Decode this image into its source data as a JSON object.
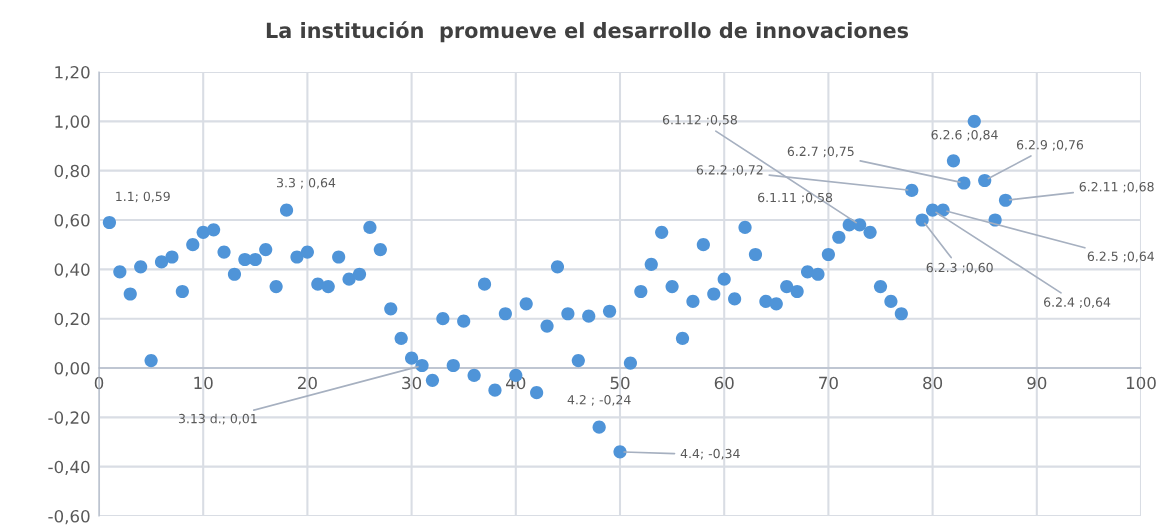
{
  "chart_data": {
    "type": "scatter",
    "title": "La institución  promueve el desarrollo de innovaciones",
    "x": [
      1,
      2,
      3,
      4,
      5,
      6,
      7,
      8,
      9,
      10,
      11,
      12,
      13,
      14,
      15,
      16,
      17,
      18,
      19,
      20,
      21,
      22,
      23,
      24,
      25,
      26,
      27,
      28,
      29,
      30,
      31,
      32,
      33,
      34,
      35,
      36,
      37,
      38,
      39,
      40,
      41,
      42,
      43,
      44,
      45,
      46,
      47,
      48,
      49,
      50,
      51,
      52,
      53,
      54,
      55,
      56,
      57,
      58,
      59,
      60,
      61,
      62,
      63,
      64,
      65,
      66,
      67,
      68,
      69,
      70,
      71,
      72,
      73,
      74,
      75,
      76,
      77,
      78,
      79,
      80,
      81,
      82,
      83,
      84,
      85,
      86,
      87
    ],
    "series": [
      {
        "color": "#4f94d8",
        "values": [
          0.59,
          0.39,
          0.3,
          0.41,
          0.03,
          0.43,
          0.45,
          0.31,
          0.5,
          0.55,
          0.56,
          0.47,
          0.38,
          0.44,
          0.44,
          0.48,
          0.33,
          0.64,
          0.45,
          0.47,
          0.34,
          0.33,
          0.45,
          0.36,
          0.38,
          0.57,
          0.48,
          0.24,
          0.12,
          0.04,
          0.01,
          -0.05,
          0.2,
          0.01,
          0.19,
          -0.03,
          0.34,
          -0.09,
          0.22,
          -0.03,
          0.26,
          -0.1,
          0.17,
          0.41,
          0.22,
          0.03,
          0.21,
          -0.24,
          0.23,
          -0.34,
          0.02,
          0.31,
          0.42,
          0.55,
          0.33,
          0.12,
          0.27,
          0.5,
          0.3,
          0.36,
          0.28,
          0.57,
          0.46,
          0.27,
          0.26,
          0.33,
          0.31,
          0.39,
          0.38,
          0.46,
          0.53,
          0.58,
          0.58,
          0.55,
          0.33,
          0.27,
          0.22,
          0.72,
          0.6,
          0.64,
          0.64,
          0.84,
          0.75,
          1.0,
          0.76,
          0.6,
          0.68
        ]
      }
    ],
    "marker": "circle",
    "grid": true,
    "legend": false,
    "xlim": [
      0,
      100
    ],
    "xticks": [
      0,
      10,
      20,
      30,
      40,
      50,
      60,
      70,
      80,
      90,
      100
    ],
    "ylim": [
      -0.6,
      1.2
    ],
    "yticks": [
      {
        "value": -0.6,
        "label": "-0,60"
      },
      {
        "value": -0.4,
        "label": "-0,40"
      },
      {
        "value": -0.2,
        "label": "-0,20"
      },
      {
        "value": 0,
        "label": "0,00"
      },
      {
        "value": 0.2,
        "label": "0,20"
      },
      {
        "value": 0.4,
        "label": "0,40"
      },
      {
        "value": 0.6,
        "label": "0,60"
      },
      {
        "value": 0.8,
        "label": "0,80"
      },
      {
        "value": 1.0,
        "label": "1,00"
      },
      {
        "value": 1.2,
        "label": "1,20"
      }
    ],
    "annotations": [
      {
        "text": "1.1; 0,59",
        "x": 1,
        "y": 0.59
      },
      {
        "text": "3.3 ; 0,64",
        "x": 18,
        "y": 0.64
      },
      {
        "text": "3.13 d.; 0,01",
        "x": 31,
        "y": 0.01
      },
      {
        "text": "4.2 ; -0,24",
        "x": 48,
        "y": -0.24
      },
      {
        "text": "4.4; -0,34",
        "x": 50,
        "y": -0.34
      },
      {
        "text": "6.1.12 ;0,58",
        "x": 73,
        "y": 0.58
      },
      {
        "text": "6.1.11 ;0,58",
        "x": 72,
        "y": 0.58
      },
      {
        "text": "6.2.2 ;0,72",
        "x": 78,
        "y": 0.72
      },
      {
        "text": "6.2.3 ;0,60",
        "x": 79,
        "y": 0.6
      },
      {
        "text": "6.2.4 ;0,64",
        "x": 80,
        "y": 0.64
      },
      {
        "text": "6.2.5 ;0,64",
        "x": 81,
        "y": 0.64
      },
      {
        "text": "6.2.6 ;0,84",
        "x": 82,
        "y": 0.84
      },
      {
        "text": "6.2.7 ;0,75",
        "x": 83,
        "y": 0.75
      },
      {
        "text": "6.2.9 ;0,76",
        "x": 85,
        "y": 0.76
      },
      {
        "text": "6.2.11 ;0,68",
        "x": 87,
        "y": 0.68
      }
    ]
  }
}
